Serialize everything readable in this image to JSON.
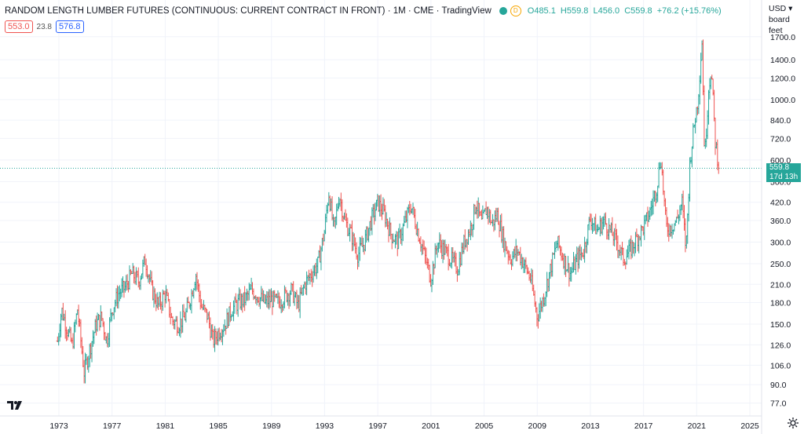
{
  "header": {
    "title": "RANDOM LENGTH LUMBER FUTURES (CONTINUOUS: CURRENT CONTRACT IN FRONT) · 1M · CME · TradingView",
    "badge": "D",
    "ohlc": {
      "o": "O485.1",
      "h": "H559.8",
      "l": "L456.0",
      "c": "C559.8",
      "chg": "+76.2 (+15.76%)"
    }
  },
  "indicators": {
    "left": "553.0",
    "mid": "23.8",
    "right": "576.8"
  },
  "price_scale": {
    "currency": "USD",
    "unit": "board feet"
  },
  "last_price": {
    "value": "559.8",
    "countdown": "17d 13h"
  },
  "colors": {
    "up": "#26a69a",
    "down": "#ef5350",
    "last_line": "#26a69a"
  },
  "chart_data": {
    "type": "ohlc",
    "scale": "log",
    "ylim": [
      70,
      1900
    ],
    "y_ticks": [
      77.0,
      90.0,
      106.0,
      126.0,
      150.0,
      180.0,
      210.0,
      250.0,
      300.0,
      360.0,
      420.0,
      500.0,
      600.0,
      720.0,
      840.0,
      1000.0,
      1200.0,
      1400.0,
      1700.0
    ],
    "x_ticks": [
      "1973",
      "1977",
      "1981",
      "1985",
      "1989",
      "1993",
      "1997",
      "2001",
      "2005",
      "2009",
      "2013",
      "2017",
      "2021",
      "2025"
    ],
    "x_range": [
      1972.9,
      2022.7
    ],
    "series_close": [
      {
        "year": 1972.9,
        "close": 130
      },
      {
        "year": 1973.2,
        "close": 170
      },
      {
        "year": 1973.6,
        "close": 145
      },
      {
        "year": 1974.0,
        "close": 125
      },
      {
        "year": 1974.4,
        "close": 170
      },
      {
        "year": 1974.9,
        "close": 100
      },
      {
        "year": 1975.3,
        "close": 120
      },
      {
        "year": 1975.8,
        "close": 150
      },
      {
        "year": 1976.2,
        "close": 160
      },
      {
        "year": 1976.6,
        "close": 130
      },
      {
        "year": 1977.0,
        "close": 170
      },
      {
        "year": 1977.5,
        "close": 195
      },
      {
        "year": 1978.0,
        "close": 205
      },
      {
        "year": 1978.5,
        "close": 230
      },
      {
        "year": 1979.0,
        "close": 215
      },
      {
        "year": 1979.5,
        "close": 260
      },
      {
        "year": 1980.0,
        "close": 200
      },
      {
        "year": 1980.5,
        "close": 175
      },
      {
        "year": 1981.0,
        "close": 195
      },
      {
        "year": 1981.5,
        "close": 155
      },
      {
        "year": 1982.0,
        "close": 150
      },
      {
        "year": 1982.5,
        "close": 160
      },
      {
        "year": 1983.0,
        "close": 195
      },
      {
        "year": 1983.3,
        "close": 230
      },
      {
        "year": 1983.7,
        "close": 175
      },
      {
        "year": 1984.2,
        "close": 160
      },
      {
        "year": 1984.6,
        "close": 130
      },
      {
        "year": 1985.0,
        "close": 140
      },
      {
        "year": 1985.5,
        "close": 150
      },
      {
        "year": 1986.0,
        "close": 170
      },
      {
        "year": 1986.5,
        "close": 180
      },
      {
        "year": 1987.0,
        "close": 185
      },
      {
        "year": 1987.5,
        "close": 200
      },
      {
        "year": 1988.0,
        "close": 190
      },
      {
        "year": 1988.5,
        "close": 180
      },
      {
        "year": 1989.0,
        "close": 185
      },
      {
        "year": 1989.5,
        "close": 180
      },
      {
        "year": 1990.0,
        "close": 190
      },
      {
        "year": 1990.5,
        "close": 200
      },
      {
        "year": 1991.0,
        "close": 175
      },
      {
        "year": 1991.5,
        "close": 210
      },
      {
        "year": 1992.0,
        "close": 230
      },
      {
        "year": 1992.5,
        "close": 250
      },
      {
        "year": 1993.0,
        "close": 330
      },
      {
        "year": 1993.3,
        "close": 460
      },
      {
        "year": 1993.7,
        "close": 330
      },
      {
        "year": 1994.1,
        "close": 450
      },
      {
        "year": 1994.5,
        "close": 360
      },
      {
        "year": 1995.0,
        "close": 320
      },
      {
        "year": 1995.5,
        "close": 270
      },
      {
        "year": 1996.0,
        "close": 300
      },
      {
        "year": 1996.5,
        "close": 360
      },
      {
        "year": 1997.0,
        "close": 420
      },
      {
        "year": 1997.5,
        "close": 380
      },
      {
        "year": 1998.0,
        "close": 320
      },
      {
        "year": 1998.5,
        "close": 300
      },
      {
        "year": 1999.0,
        "close": 350
      },
      {
        "year": 1999.5,
        "close": 410
      },
      {
        "year": 2000.0,
        "close": 330
      },
      {
        "year": 2000.5,
        "close": 270
      },
      {
        "year": 2001.0,
        "close": 220
      },
      {
        "year": 2001.5,
        "close": 300
      },
      {
        "year": 2002.0,
        "close": 280
      },
      {
        "year": 2002.5,
        "close": 260
      },
      {
        "year": 2003.0,
        "close": 240
      },
      {
        "year": 2003.5,
        "close": 300
      },
      {
        "year": 2004.0,
        "close": 340
      },
      {
        "year": 2004.4,
        "close": 420
      },
      {
        "year": 2004.8,
        "close": 350
      },
      {
        "year": 2005.2,
        "close": 400
      },
      {
        "year": 2005.6,
        "close": 350
      },
      {
        "year": 2006.0,
        "close": 380
      },
      {
        "year": 2006.5,
        "close": 300
      },
      {
        "year": 2007.0,
        "close": 260
      },
      {
        "year": 2007.5,
        "close": 280
      },
      {
        "year": 2008.0,
        "close": 250
      },
      {
        "year": 2008.5,
        "close": 220
      },
      {
        "year": 2009.0,
        "close": 160
      },
      {
        "year": 2009.5,
        "close": 190
      },
      {
        "year": 2010.0,
        "close": 240
      },
      {
        "year": 2010.5,
        "close": 300
      },
      {
        "year": 2011.0,
        "close": 260
      },
      {
        "year": 2011.5,
        "close": 230
      },
      {
        "year": 2012.0,
        "close": 260
      },
      {
        "year": 2012.5,
        "close": 280
      },
      {
        "year": 2013.0,
        "close": 370
      },
      {
        "year": 2013.5,
        "close": 330
      },
      {
        "year": 2014.0,
        "close": 360
      },
      {
        "year": 2014.5,
        "close": 330
      },
      {
        "year": 2015.0,
        "close": 300
      },
      {
        "year": 2015.5,
        "close": 260
      },
      {
        "year": 2016.0,
        "close": 280
      },
      {
        "year": 2016.5,
        "close": 310
      },
      {
        "year": 2017.0,
        "close": 340
      },
      {
        "year": 2017.5,
        "close": 390
      },
      {
        "year": 2018.0,
        "close": 480
      },
      {
        "year": 2018.3,
        "close": 620
      },
      {
        "year": 2018.7,
        "close": 340
      },
      {
        "year": 2019.0,
        "close": 340
      },
      {
        "year": 2019.5,
        "close": 360
      },
      {
        "year": 2019.9,
        "close": 420
      },
      {
        "year": 2020.2,
        "close": 280
      },
      {
        "year": 2020.5,
        "close": 600
      },
      {
        "year": 2020.8,
        "close": 800
      },
      {
        "year": 2021.1,
        "close": 1000
      },
      {
        "year": 2021.4,
        "close": 1650
      },
      {
        "year": 2021.6,
        "close": 600
      },
      {
        "year": 2021.9,
        "close": 1100
      },
      {
        "year": 2022.1,
        "close": 1300
      },
      {
        "year": 2022.4,
        "close": 700
      },
      {
        "year": 2022.7,
        "close": 559.8
      }
    ]
  }
}
